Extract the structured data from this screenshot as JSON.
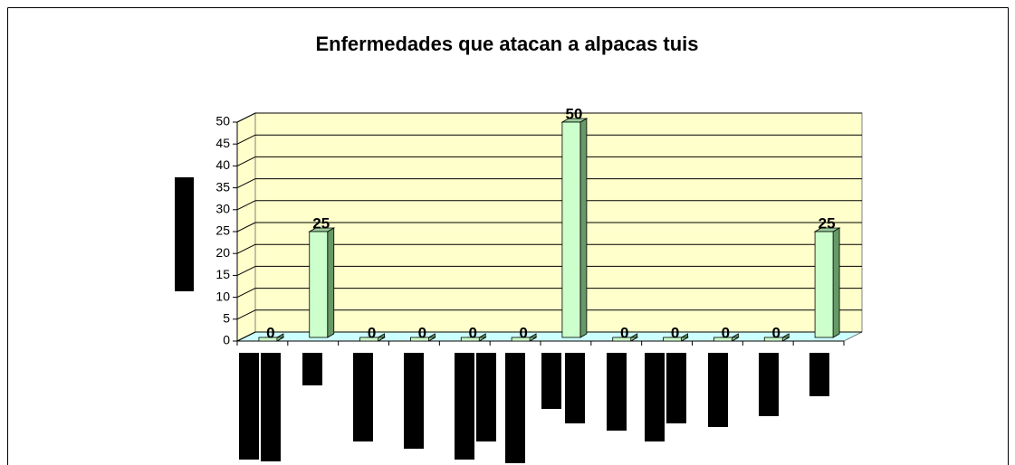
{
  "chart_data": {
    "type": "bar3d",
    "title": "Enfermedades que atacan a alpacas tuis",
    "categories": [
      null,
      null,
      null,
      null,
      null,
      null,
      null,
      null,
      null,
      null,
      null,
      null
    ],
    "values": [
      0,
      25,
      0,
      0,
      0,
      0,
      50,
      0,
      0,
      0,
      0,
      25
    ],
    "color": "#ccffcc",
    "ylim": [
      0,
      50
    ],
    "yticks": [
      0,
      5,
      10,
      15,
      20,
      25,
      30,
      35,
      40,
      45,
      50
    ],
    "grid": true
  }
}
